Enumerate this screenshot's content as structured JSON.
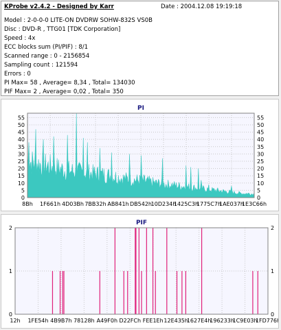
{
  "info": {
    "title": "KProbe v2.4.2 - Designed by Karr",
    "date": "Date : 2004.12.08 19:19:18",
    "lines": [
      "Model : 2-0-0-0 LITE-ON DVDRW SOHW-832S  VS0B",
      "Disc : DVD-R , TTG01 [TDK Corporation]",
      "Speed : 4x",
      "ECC blocks sum (PI/PIF) : 8/1",
      "Scanned range : 0 - 2156854",
      "Sampling count : 121594",
      "Errors : 0",
      "PI Max= 58 , Average= 8,34 , Total= 134030",
      "PIF Max= 2 , Average= 0,02 , Total= 350"
    ]
  },
  "chart_data": [
    {
      "type": "area",
      "title": "PI",
      "ylim": [
        0,
        58
      ],
      "yticks": [
        0,
        5,
        10,
        15,
        20,
        25,
        30,
        35,
        40,
        45,
        50,
        55
      ],
      "xticks": [
        "8Bh",
        "1F661h",
        "4D03Bh",
        "7BB32h",
        "AB841h",
        "DB542h",
        "10D234h",
        "1425C3h",
        "1775C7h",
        "1AE037h",
        "1E3C66h"
      ],
      "grid": true,
      "fill_color": "#3cc8c0",
      "baseline": [
        27,
        26,
        25,
        24,
        23,
        22,
        21,
        20,
        19.5,
        19,
        18.5,
        18,
        17.5,
        17,
        16.5,
        16,
        15,
        14,
        13.5,
        13,
        12.5,
        12,
        11,
        10.5,
        10,
        9.5,
        9,
        8.5,
        8,
        7.5,
        7,
        6.5,
        6,
        5.5,
        5,
        4.5,
        4,
        3.5,
        3,
        3,
        2.5
      ],
      "peaks": [
        {
          "pos": 0.005,
          "value": 38
        },
        {
          "pos": 0.035,
          "value": 47
        },
        {
          "pos": 0.07,
          "value": 40
        },
        {
          "pos": 0.115,
          "value": 42
        },
        {
          "pos": 0.175,
          "value": 43
        },
        {
          "pos": 0.215,
          "value": 58
        },
        {
          "pos": 0.245,
          "value": 41
        },
        {
          "pos": 0.265,
          "value": 38
        },
        {
          "pos": 0.32,
          "value": 34
        },
        {
          "pos": 0.37,
          "value": 31
        },
        {
          "pos": 0.45,
          "value": 30
        },
        {
          "pos": 0.5,
          "value": 29
        },
        {
          "pos": 0.595,
          "value": 27
        },
        {
          "pos": 0.7,
          "value": 22
        },
        {
          "pos": 0.72,
          "value": 21
        },
        {
          "pos": 0.755,
          "value": 20
        },
        {
          "pos": 0.765,
          "value": 12
        },
        {
          "pos": 0.8,
          "value": 9
        },
        {
          "pos": 0.9,
          "value": 8
        }
      ]
    },
    {
      "type": "bar",
      "title": "PIF",
      "ylim": [
        0,
        2
      ],
      "yticks": [
        0,
        1,
        2
      ],
      "xticks": [
        "12h",
        "1FE54h",
        "4B9B7h",
        "78128h",
        "A49F0h",
        "D22FCh",
        "FEE1Eh",
        "12E435h",
        "1627E4h",
        "196233h",
        "1C9E03h",
        "1FD776h"
      ],
      "grid": true,
      "bar_color": "#e0207a",
      "pulses": [
        {
          "pos": 0.148,
          "value": 1
        },
        {
          "pos": 0.178,
          "value": 1
        },
        {
          "pos": 0.188,
          "value": 1
        },
        {
          "pos": 0.193,
          "value": 1
        },
        {
          "pos": 0.335,
          "value": 1
        },
        {
          "pos": 0.395,
          "value": 2
        },
        {
          "pos": 0.43,
          "value": 1
        },
        {
          "pos": 0.445,
          "value": 1
        },
        {
          "pos": 0.475,
          "value": 2
        },
        {
          "pos": 0.478,
          "value": 2
        },
        {
          "pos": 0.49,
          "value": 2
        },
        {
          "pos": 0.5,
          "value": 1
        },
        {
          "pos": 0.52,
          "value": 2
        },
        {
          "pos": 0.545,
          "value": 2
        },
        {
          "pos": 0.555,
          "value": 1
        },
        {
          "pos": 0.6,
          "value": 2
        },
        {
          "pos": 0.64,
          "value": 1
        },
        {
          "pos": 0.66,
          "value": 1
        },
        {
          "pos": 0.675,
          "value": 1
        },
        {
          "pos": 0.738,
          "value": 2
        },
        {
          "pos": 0.94,
          "value": 1
        },
        {
          "pos": 0.96,
          "value": 1
        }
      ]
    }
  ]
}
